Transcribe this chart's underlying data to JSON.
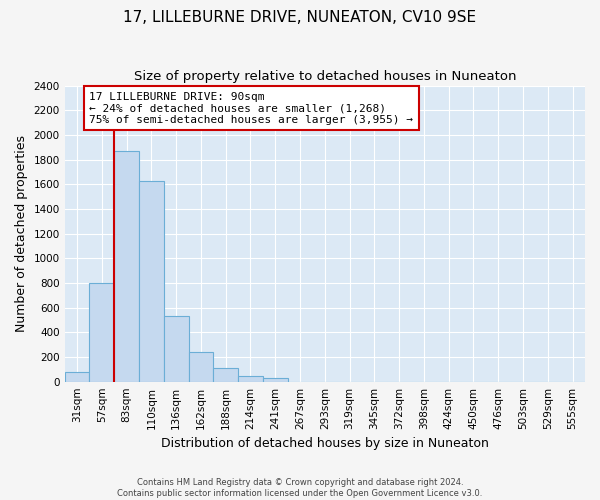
{
  "title": "17, LILLEBURNE DRIVE, NUNEATON, CV10 9SE",
  "subtitle": "Size of property relative to detached houses in Nuneaton",
  "xlabel": "Distribution of detached houses by size in Nuneaton",
  "ylabel": "Number of detached properties",
  "categories": [
    "31sqm",
    "57sqm",
    "83sqm",
    "110sqm",
    "136sqm",
    "162sqm",
    "188sqm",
    "214sqm",
    "241sqm",
    "267sqm",
    "293sqm",
    "319sqm",
    "345sqm",
    "372sqm",
    "398sqm",
    "424sqm",
    "450sqm",
    "476sqm",
    "503sqm",
    "529sqm",
    "555sqm"
  ],
  "values": [
    75,
    800,
    1870,
    1630,
    530,
    240,
    110,
    50,
    30,
    0,
    0,
    0,
    0,
    0,
    0,
    0,
    0,
    0,
    0,
    0,
    0
  ],
  "bar_color": "#c5d9ef",
  "bar_edge_color": "#6baed6",
  "property_bin_index": 2,
  "vline_color": "#cc0000",
  "annotation_line1": "17 LILLEBURNE DRIVE: 90sqm",
  "annotation_line2": "← 24% of detached houses are smaller (1,268)",
  "annotation_line3": "75% of semi-detached houses are larger (3,955) →",
  "annotation_box_color": "#ffffff",
  "annotation_box_edge": "#cc0000",
  "ylim": [
    0,
    2400
  ],
  "yticks": [
    0,
    200,
    400,
    600,
    800,
    1000,
    1200,
    1400,
    1600,
    1800,
    2000,
    2200,
    2400
  ],
  "plot_bg_color": "#dce9f5",
  "fig_bg_color": "#f5f5f5",
  "grid_color": "#ffffff",
  "footer_line1": "Contains HM Land Registry data © Crown copyright and database right 2024.",
  "footer_line2": "Contains public sector information licensed under the Open Government Licence v3.0.",
  "title_fontsize": 11,
  "subtitle_fontsize": 9.5,
  "tick_fontsize": 7.5,
  "ylabel_fontsize": 9,
  "xlabel_fontsize": 9,
  "annotation_fontsize": 8,
  "footer_fontsize": 6
}
